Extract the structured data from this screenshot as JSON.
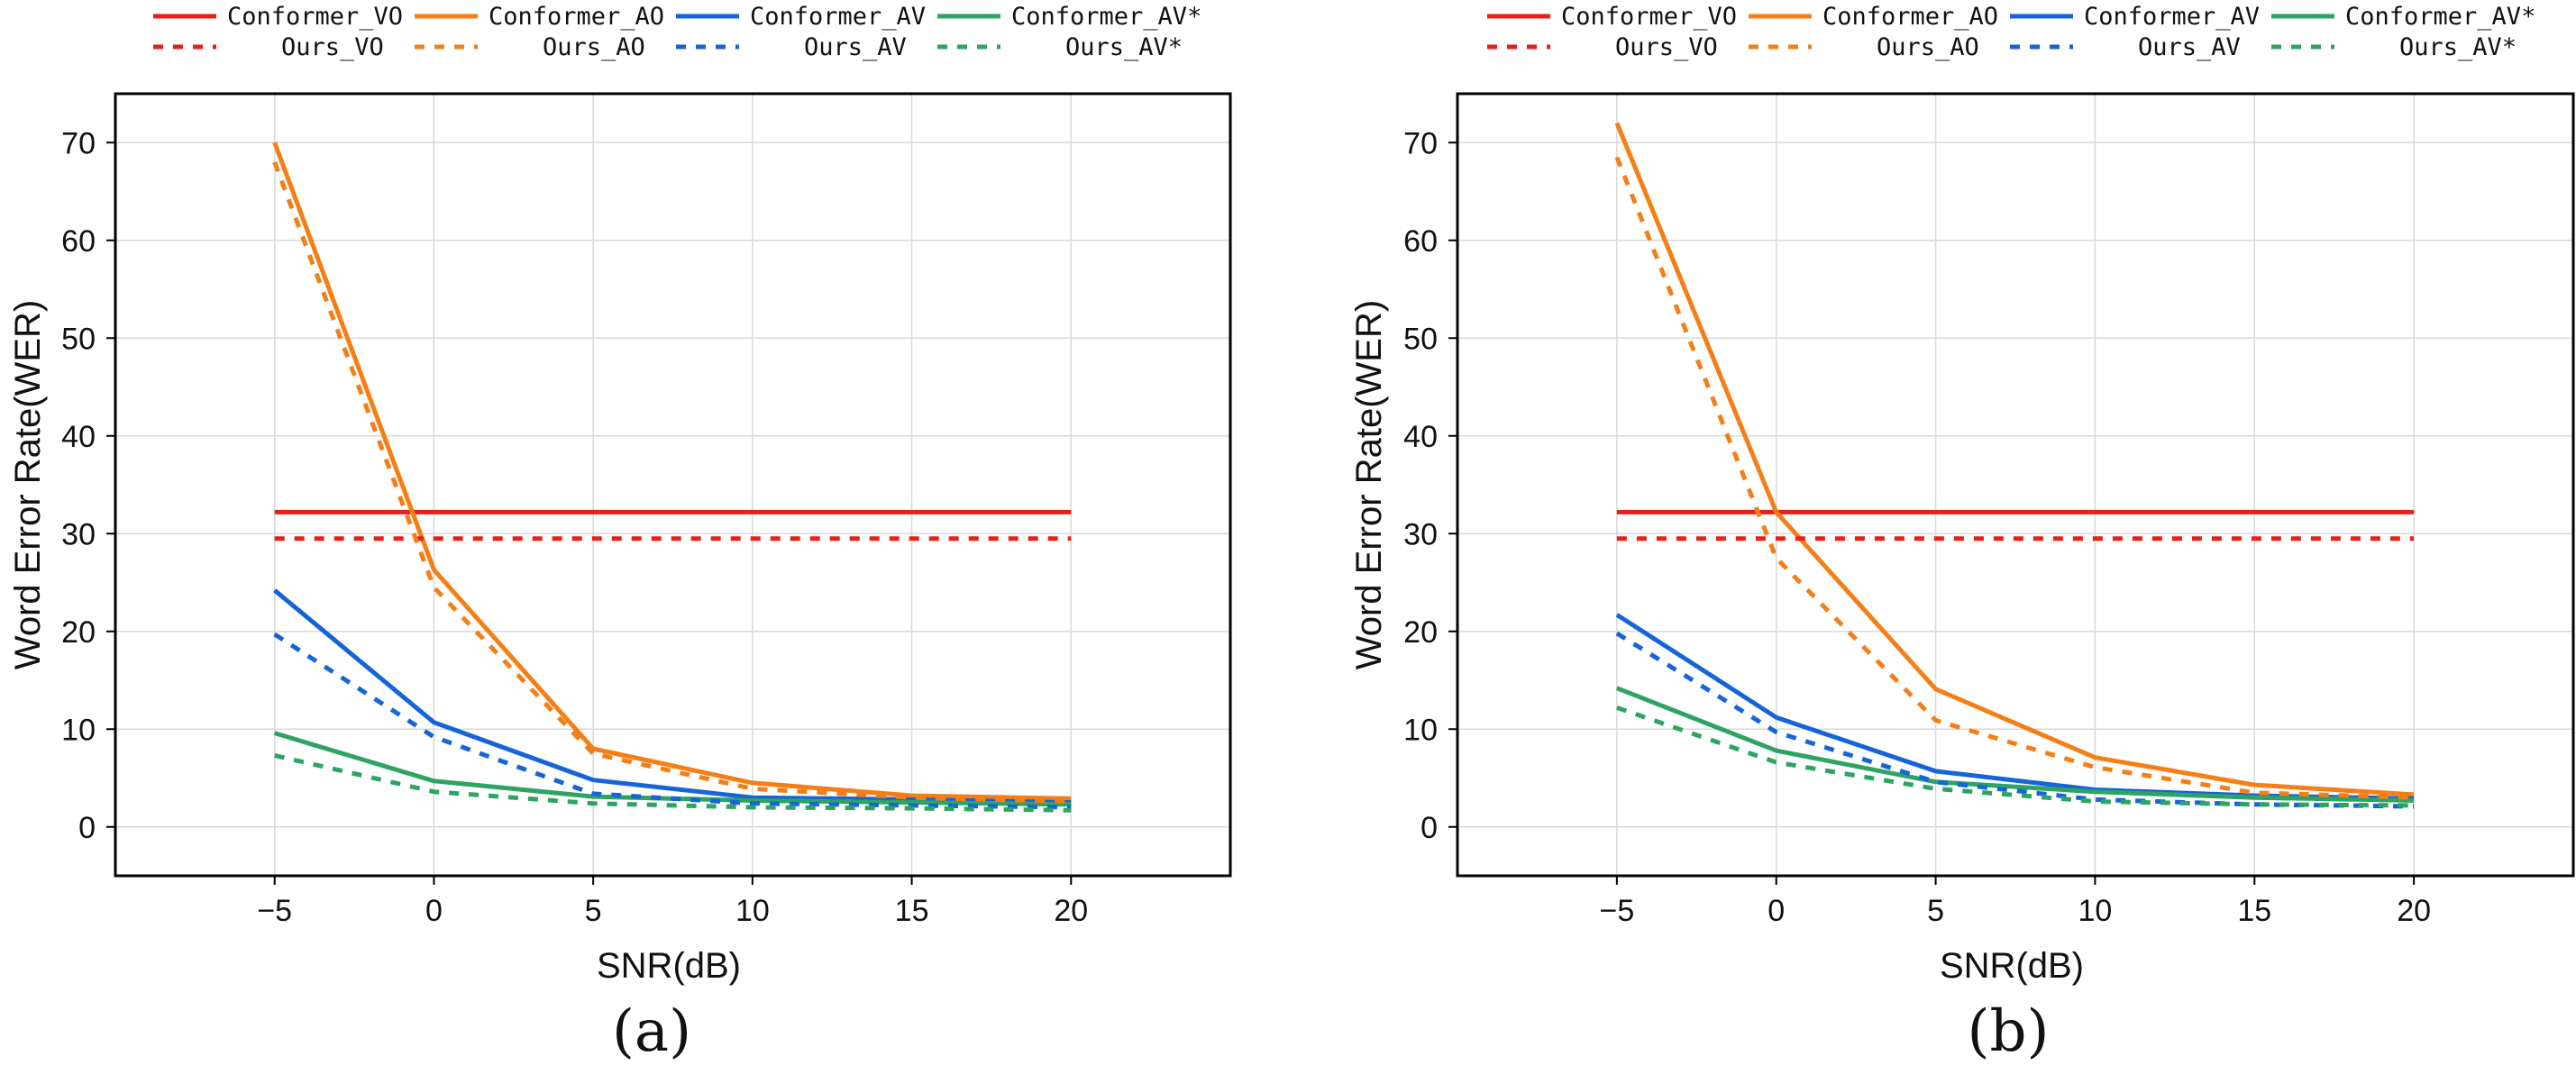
{
  "chart_data": [
    {
      "type": "line",
      "panel": "a",
      "caption": "(a)",
      "xlabel": "SNR(dB)",
      "ylabel": "Word Error Rate(WER)",
      "x": [
        -5,
        0,
        5,
        10,
        15,
        20
      ],
      "xticks": [
        -5,
        0,
        5,
        10,
        15,
        20
      ],
      "yticks": [
        0,
        10,
        20,
        30,
        40,
        50,
        60,
        70
      ],
      "xlim": [
        -10,
        25
      ],
      "ylim": [
        -5,
        75
      ],
      "grid": true,
      "legend_position": "top",
      "series": [
        {
          "name": "Conformer_VO",
          "color": "#e8201c",
          "dash": "solid",
          "values": [
            32.2,
            32.2,
            32.2,
            32.2,
            32.2,
            32.2
          ]
        },
        {
          "name": "Conformer_AO",
          "color": "#f57f17",
          "dash": "solid",
          "values": [
            70.0,
            26.3,
            8.0,
            4.5,
            3.2,
            2.9
          ]
        },
        {
          "name": "Conformer_AV",
          "color": "#1565d8",
          "dash": "solid",
          "values": [
            24.2,
            10.7,
            4.8,
            3.0,
            2.8,
            2.5
          ]
        },
        {
          "name": "Conformer_AV*",
          "color": "#2ea463",
          "dash": "solid",
          "values": [
            9.6,
            4.7,
            3.1,
            2.7,
            2.5,
            2.3
          ]
        },
        {
          "name": "Ours_VO",
          "color": "#e8201c",
          "dash": "dotted",
          "values": [
            29.5,
            29.5,
            29.5,
            29.5,
            29.5,
            29.5
          ]
        },
        {
          "name": "Ours_AO",
          "color": "#f57f17",
          "dash": "dotted",
          "values": [
            68.0,
            24.5,
            7.5,
            3.9,
            3.0,
            2.6
          ]
        },
        {
          "name": "Ours_AV",
          "color": "#1565d8",
          "dash": "dotted",
          "values": [
            19.7,
            9.2,
            3.4,
            2.4,
            2.2,
            2.0
          ]
        },
        {
          "name": "Ours_AV*",
          "color": "#2ea463",
          "dash": "dotted",
          "values": [
            7.3,
            3.6,
            2.4,
            2.0,
            1.9,
            1.7
          ]
        }
      ]
    },
    {
      "type": "line",
      "panel": "b",
      "caption": "(b)",
      "xlabel": "SNR(dB)",
      "ylabel": "Word Error Rate(WER)",
      "x": [
        -5,
        0,
        5,
        10,
        15,
        20
      ],
      "xticks": [
        -5,
        0,
        5,
        10,
        15,
        20
      ],
      "yticks": [
        0,
        10,
        20,
        30,
        40,
        50,
        60,
        70
      ],
      "xlim": [
        -10,
        25
      ],
      "ylim": [
        -5,
        75
      ],
      "grid": true,
      "legend_position": "top",
      "series": [
        {
          "name": "Conformer_VO",
          "color": "#e8201c",
          "dash": "solid",
          "values": [
            32.2,
            32.2,
            32.2,
            32.2,
            32.2,
            32.2
          ]
        },
        {
          "name": "Conformer_AO",
          "color": "#f57f17",
          "dash": "solid",
          "values": [
            72.0,
            32.2,
            14.1,
            7.1,
            4.3,
            3.3
          ]
        },
        {
          "name": "Conformer_AV",
          "color": "#1565d8",
          "dash": "solid",
          "values": [
            21.7,
            11.2,
            5.7,
            3.8,
            3.2,
            2.9
          ]
        },
        {
          "name": "Conformer_AV*",
          "color": "#2ea463",
          "dash": "solid",
          "values": [
            14.2,
            7.8,
            4.6,
            3.6,
            3.0,
            2.7
          ]
        },
        {
          "name": "Ours_VO",
          "color": "#e8201c",
          "dash": "dotted",
          "values": [
            29.5,
            29.5,
            29.5,
            29.5,
            29.5,
            29.5
          ]
        },
        {
          "name": "Ours_AO",
          "color": "#f57f17",
          "dash": "dotted",
          "values": [
            68.5,
            27.5,
            10.9,
            6.1,
            3.5,
            3.0
          ]
        },
        {
          "name": "Ours_AV",
          "color": "#1565d8",
          "dash": "dotted",
          "values": [
            19.8,
            9.7,
            4.6,
            2.8,
            2.3,
            2.1
          ]
        },
        {
          "name": "Ours_AV*",
          "color": "#2ea463",
          "dash": "dotted",
          "values": [
            12.2,
            6.6,
            3.9,
            2.6,
            2.3,
            2.2
          ]
        }
      ]
    }
  ]
}
